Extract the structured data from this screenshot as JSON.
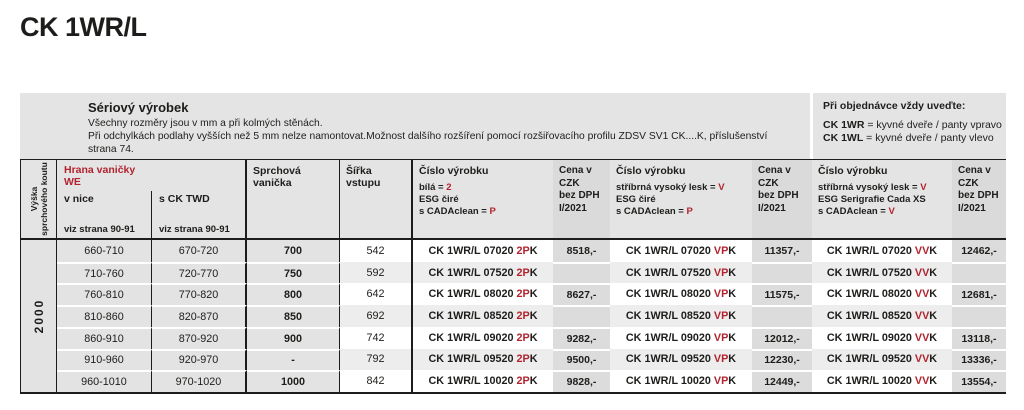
{
  "colors": {
    "accent_red": "#b3232e",
    "ink": "#1d1d1b",
    "band_bg": "#e4e4e4",
    "price_header_bg": "#dadada",
    "price_cell_bg": "#dcdcdc",
    "alt_row_bg": "#ededed"
  },
  "page_title": "CK 1WR/L",
  "info": {
    "heading": "Sériový výrobek",
    "lines": [
      "Všechny rozměry jsou v mm a při kolmých stěnách.",
      "Při odchylkách podlahy vyšších než 5 mm nelze namontovat.Možnost dalšího rozšíření pomocí rozšiřovacího profilu ZDSV SV1 CK....K, příslušenství",
      "strana 74."
    ]
  },
  "order_note": {
    "heading": "Při objednávce vždy uveďte:",
    "options": [
      {
        "code": "CK 1WR",
        "desc": " = kyvné dveře / panty vpravo"
      },
      {
        "code": "CK 1WL",
        "desc": " = kyvné dveře / panty vlevo"
      }
    ]
  },
  "header": {
    "height_label_lines": [
      "Výška",
      "sprchového koutu"
    ],
    "edge_group": {
      "title": "Hrana vaničky",
      "subtitle": "WE",
      "columns": [
        {
          "label": "v nice",
          "ref": "viz strana 90-91"
        },
        {
          "label": "s CK TWD",
          "ref": "viz strana 90-91"
        }
      ]
    },
    "tray_label": "Sprchová vanička",
    "entry_width_label": "Šířka vstupu",
    "product_cols": [
      {
        "title": "Číslo výrobku",
        "specs": [
          {
            "label": "bílá = ",
            "value": "2"
          },
          {
            "label": "ESG čiré",
            "value": ""
          },
          {
            "label": "s CADAclean = ",
            "value": "P"
          }
        ]
      },
      {
        "title": "Číslo výrobku",
        "specs": [
          {
            "label": "stříbrná vysoký lesk = ",
            "value": "V"
          },
          {
            "label": "ESG čiré",
            "value": ""
          },
          {
            "label": "s CADAclean = ",
            "value": "P"
          }
        ]
      },
      {
        "title": "Číslo výrobku",
        "specs": [
          {
            "label": "stříbrná vysoký lesk = ",
            "value": "V"
          },
          {
            "label": "ESG Serigrafie Cada XS",
            "value": ""
          },
          {
            "label": "s CADAclean = ",
            "value": "V"
          }
        ]
      }
    ],
    "price_col": {
      "line1": "Cena v CZK",
      "line2": "bez DPH",
      "line3": "I/2021"
    }
  },
  "table": {
    "height_value": "2000",
    "rows": [
      {
        "niche": "660-710",
        "twd": "670-720",
        "tray": "700",
        "entry": "542",
        "code1": "CK 1WR/L 07020 2PK",
        "price1": "8518,-",
        "code2": "CK 1WR/L 07020 VPK",
        "price2": "11357,-",
        "code3": "CK 1WR/L 07020 VVK",
        "price3": "12462,-"
      },
      {
        "niche": "710-760",
        "twd": "720-770",
        "tray": "750",
        "entry": "592",
        "code1": "CK 1WR/L 07520 2PK",
        "price1": "",
        "code2": "CK 1WR/L 07520 VPK",
        "price2": "",
        "code3": "CK 1WR/L 07520 VVK",
        "price3": ""
      },
      {
        "niche": "760-810",
        "twd": "770-820",
        "tray": "800",
        "entry": "642",
        "code1": "CK 1WR/L 08020 2PK",
        "price1": "8627,-",
        "code2": "CK 1WR/L 08020 VPK",
        "price2": "11575,-",
        "code3": "CK 1WR/L 08020 VVK",
        "price3": "12681,-"
      },
      {
        "niche": "810-860",
        "twd": "820-870",
        "tray": "850",
        "entry": "692",
        "code1": "CK 1WR/L 08520 2PK",
        "price1": "",
        "code2": "CK 1WR/L 08520 VPK",
        "price2": "",
        "code3": "CK 1WR/L 08520 VVK",
        "price3": ""
      },
      {
        "niche": "860-910",
        "twd": "870-920",
        "tray": "900",
        "entry": "742",
        "code1": "CK 1WR/L 09020 2PK",
        "price1": "9282,-",
        "code2": "CK 1WR/L 09020 VPK",
        "price2": "12012,-",
        "code3": "CK 1WR/L 09020 VVK",
        "price3": "13118,-"
      },
      {
        "niche": "910-960",
        "twd": "920-970",
        "tray": "-",
        "entry": "792",
        "code1": "CK 1WR/L 09520 2PK",
        "price1": "9500,-",
        "code2": "CK 1WR/L 09520 VPK",
        "price2": "12230,-",
        "code3": "CK 1WR/L 09520 VVK",
        "price3": "13336,-"
      },
      {
        "niche": "960-1010",
        "twd": "970-1020",
        "tray": "1000",
        "entry": "842",
        "code1": "CK 1WR/L 10020 2PK",
        "price1": "9828,-",
        "code2": "CK 1WR/L 10020 VPK",
        "price2": "12449,-",
        "code3": "CK 1WR/L 10020 VVK",
        "price3": "13554,-"
      }
    ]
  }
}
